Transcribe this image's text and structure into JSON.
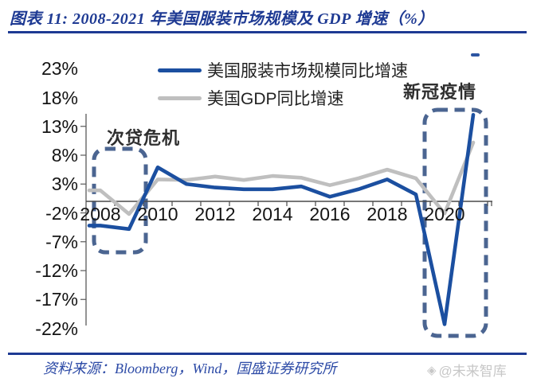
{
  "header": {
    "title": "图表 11:  2008-2021 年美国服装市场规模及 GDP 增速（%）"
  },
  "footer": {
    "source_label": "资料来源：Bloomberg，Wind，国盛证券研究所",
    "watermark_text": "@未来智库"
  },
  "colors": {
    "accent_navy": "#1e3a93",
    "series_apparel": "#1b4fa0",
    "series_gdp": "#bfbfbf",
    "annotation_box": "#4b6591",
    "axis": "#4a4a4a"
  },
  "chart_data": {
    "type": "line",
    "title": "2008-2021 年美国服装市场规模及 GDP 增速（%）",
    "x": [
      2008,
      2009,
      2010,
      2011,
      2012,
      2013,
      2014,
      2015,
      2016,
      2017,
      2018,
      2019,
      2020,
      2021
    ],
    "series": [
      {
        "name": "美国服装市场规模同比增速",
        "color": "#1b4fa0",
        "values": [
          -4.2,
          -4.8,
          5.9,
          3.0,
          2.4,
          2.1,
          2.1,
          2.6,
          0.8,
          2.1,
          3.8,
          1.2,
          -21.3,
          15.0
        ]
      },
      {
        "name": "美国GDP同比增速",
        "color": "#bfbfbf",
        "values": [
          1.9,
          -2.2,
          3.8,
          3.7,
          4.3,
          3.7,
          4.4,
          4.1,
          2.8,
          4.0,
          5.5,
          4.0,
          -2.1,
          10.2
        ]
      }
    ],
    "ylim": [
      -22,
      23
    ],
    "yticks": [
      23,
      18,
      13,
      8,
      3,
      -2,
      -7,
      -12,
      -17,
      -22
    ],
    "ytick_suffix": "%",
    "xticks": [
      2008,
      2010,
      2012,
      2014,
      2016,
      2018,
      2020
    ],
    "grid": false,
    "legend_position": "top-center",
    "annotations": [
      {
        "text": "次贷危机",
        "target_years": "2008-2009"
      },
      {
        "text": "新冠疫情",
        "target_years": "2020-2021"
      }
    ]
  }
}
